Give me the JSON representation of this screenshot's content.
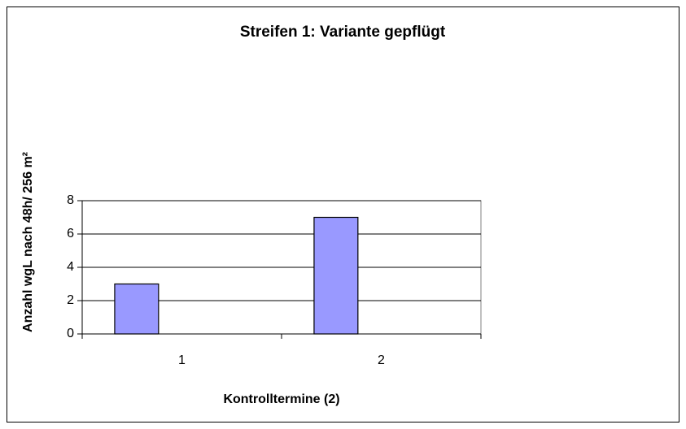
{
  "chart_data": {
    "type": "bar",
    "title": "Streifen 1: Variante gepflügt",
    "x_label": "Kontrolltermine (2)",
    "y_label": "Anzahl wgL nach 48h/ 256 m²",
    "categories": [
      "1",
      "2"
    ],
    "values": [
      3,
      7
    ],
    "color": "#9999ff",
    "ylim": [
      0,
      8
    ],
    "yticks": [
      0,
      2,
      4,
      6,
      8
    ],
    "grid": true
  }
}
